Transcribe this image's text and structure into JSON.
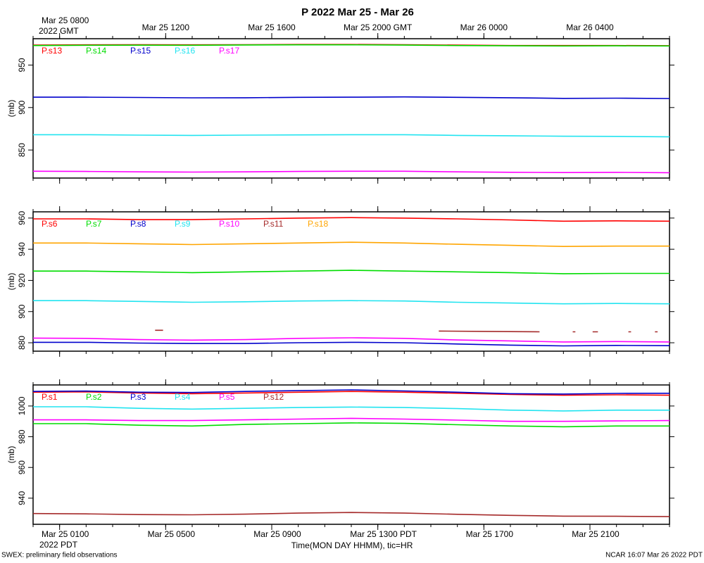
{
  "footer_left": "SWEX: preliminary field observations",
  "footer_right": "NCAR 16:07 Mar 26 2022 PDT",
  "chart_data": [
    {
      "type": "line",
      "title": "P 2022 Mar 25 - Mar 26",
      "ylabel": "(mb)",
      "x2label": "2022 GMT",
      "xlim": [
        0,
        24
      ],
      "xminorticks": [
        0,
        1,
        2,
        3,
        4,
        5,
        6,
        7,
        8,
        9,
        10,
        11,
        12,
        13,
        14,
        15,
        16,
        17,
        18,
        19,
        20,
        21,
        22,
        23,
        24
      ],
      "x2ticks": [
        {
          "value": 1,
          "label": "Mar 25 0800"
        },
        {
          "value": 5,
          "label": "Mar 25 1200"
        },
        {
          "value": 9,
          "label": "Mar 25 1600"
        },
        {
          "value": 13,
          "label": "Mar 25 2000 GMT"
        },
        {
          "value": 17,
          "label": "Mar 26 0000"
        },
        {
          "value": 21,
          "label": "Mar 26 0400"
        }
      ],
      "ylim": [
        817,
        981
      ],
      "yticks": [
        850,
        900,
        950
      ],
      "x": [
        0,
        2,
        4,
        6,
        8,
        10,
        12,
        14,
        16,
        18,
        20,
        22,
        24
      ],
      "series": [
        {
          "name": "P.s13",
          "color": "#ff0000",
          "values": [
            973.5,
            973.8,
            974,
            973.8,
            974,
            974.2,
            974.2,
            974,
            973.5,
            973,
            973,
            973,
            972.8
          ]
        },
        {
          "name": "P.s14",
          "color": "#00dd00",
          "values": [
            973,
            973.3,
            973.4,
            973.3,
            973.6,
            973.8,
            973.8,
            973.5,
            973,
            972.6,
            972.5,
            972.6,
            972.5
          ]
        },
        {
          "name": "P.s15",
          "color": "#0000cc",
          "values": [
            912.2,
            912.2,
            911.8,
            911.4,
            911.5,
            912,
            912.2,
            912.5,
            912,
            911.5,
            910.8,
            911,
            910.6
          ]
        },
        {
          "name": "P.s16",
          "color": "#22e4f0",
          "values": [
            868,
            868,
            867.5,
            867.2,
            867.5,
            867.8,
            868,
            868,
            867.2,
            866.8,
            866.2,
            866,
            865.5
          ]
        },
        {
          "name": "P.s17",
          "color": "#ff00ff",
          "values": [
            825,
            824.8,
            824.3,
            824,
            824.3,
            824.8,
            825,
            825,
            824.3,
            823.8,
            823.5,
            823.7,
            823.3
          ]
        }
      ]
    },
    {
      "type": "line",
      "ylabel": "(mb)",
      "xlim": [
        0,
        24
      ],
      "ylim": [
        874.6,
        964
      ],
      "yticks": [
        880,
        900,
        920,
        940,
        960
      ],
      "x": [
        0,
        2,
        4,
        6,
        8,
        10,
        12,
        14,
        16,
        18,
        20,
        22,
        24
      ],
      "series": [
        {
          "name": "P.s6",
          "color": "#ff0000",
          "values": [
            959.5,
            959.5,
            959,
            959,
            959.5,
            960,
            960.3,
            960,
            959.5,
            958.8,
            958,
            958.2,
            958
          ]
        },
        {
          "name": "P.s7",
          "color": "#00dd00",
          "values": [
            926,
            926,
            925.5,
            925,
            925.5,
            926,
            926.5,
            926,
            925.5,
            925,
            924.3,
            924.5,
            924.5
          ]
        },
        {
          "name": "P.s8",
          "color": "#0000cc",
          "values": [
            880.3,
            880.3,
            879.8,
            879.5,
            879.5,
            880,
            880.3,
            880,
            879.2,
            878.5,
            878,
            878.3,
            878.1
          ]
        },
        {
          "name": "P.s9",
          "color": "#22e4f0",
          "values": [
            907,
            907,
            906.5,
            906,
            906.3,
            906.8,
            907,
            906.8,
            906,
            905.5,
            905,
            905.2,
            905
          ]
        },
        {
          "name": "P.s10",
          "color": "#ff00ff",
          "values": [
            883,
            882.8,
            882,
            881.7,
            882,
            882.8,
            883.2,
            882.8,
            881.8,
            881.2,
            880.5,
            880.8,
            880.5
          ]
        },
        {
          "name": "P.s11",
          "color": "#a52a2a",
          "x": [
            4.6,
            4.9,
            5,
            15.3,
            17,
            19.1,
            19.5,
            20.35,
            20.45,
            20.8,
            21.1,
            21.3,
            22,
            22.45,
            22.55,
            23,
            23.45,
            23.55
          ],
          "values": [
            888,
            888,
            null,
            887.5,
            887.3,
            887,
            null,
            887,
            887,
            null,
            887,
            887,
            null,
            887,
            887,
            null,
            887,
            887
          ]
        },
        {
          "name": "P.s18",
          "color": "#ffa500",
          "values": [
            944,
            944,
            943.5,
            943,
            943.5,
            944,
            944.5,
            944,
            943.2,
            942.5,
            941.8,
            942,
            942
          ]
        }
      ]
    },
    {
      "type": "line",
      "ylabel": "(mb)",
      "xlabel": "Time(MON DAY HHMM), tic=HR",
      "xunitlabel": "2022 PDT",
      "xlim": [
        0,
        24
      ],
      "xticks": [
        {
          "value": 1,
          "label": "Mar 25 0100"
        },
        {
          "value": 5,
          "label": "Mar 25 0500"
        },
        {
          "value": 9,
          "label": "Mar 25 0900"
        },
        {
          "value": 13,
          "label": "Mar 25 1300 PDT"
        },
        {
          "value": 17,
          "label": "Mar 25 1700"
        },
        {
          "value": 21,
          "label": "Mar 25 2100"
        }
      ],
      "ylim": [
        923,
        1013.7
      ],
      "yticks": [
        940,
        960,
        980,
        1000
      ],
      "x": [
        0,
        2,
        4,
        6,
        8,
        10,
        12,
        14,
        16,
        18,
        20,
        22,
        24
      ],
      "series": [
        {
          "name": "P.s1",
          "color": "#ff0000",
          "values": [
            1009,
            1009.2,
            1008.5,
            1008,
            1008.5,
            1009,
            1009.5,
            1009,
            1008.3,
            1007.5,
            1007,
            1007.3,
            1007
          ]
        },
        {
          "name": "P.s2",
          "color": "#00dd00",
          "values": [
            988.5,
            988.5,
            987.5,
            987,
            988,
            988.5,
            989,
            988.7,
            987.8,
            987,
            986.5,
            987,
            987
          ]
        },
        {
          "name": "P.s3",
          "color": "#0000cc",
          "values": [
            1009.5,
            1009.7,
            1009,
            1008.8,
            1009.5,
            1010,
            1010.5,
            1009.8,
            1009,
            1008,
            1007.8,
            1008.2,
            1008.3
          ]
        },
        {
          "name": "P.s4",
          "color": "#22e4f0",
          "values": [
            999.5,
            999.5,
            998.5,
            998,
            998.5,
            999,
            999.3,
            999,
            998.3,
            997.3,
            996.8,
            997.3,
            997.3
          ]
        },
        {
          "name": "P.s5",
          "color": "#ff00ff",
          "values": [
            991,
            991,
            990.5,
            990.5,
            991,
            991.5,
            992,
            991.5,
            990.8,
            990,
            990,
            990.3,
            990.5
          ]
        },
        {
          "name": "P.s12",
          "color": "#a52a2a",
          "values": [
            930,
            929.8,
            929.3,
            929.2,
            929.6,
            930.3,
            930.7,
            930.3,
            929.5,
            928.8,
            928.3,
            928.2,
            928
          ]
        }
      ]
    }
  ]
}
